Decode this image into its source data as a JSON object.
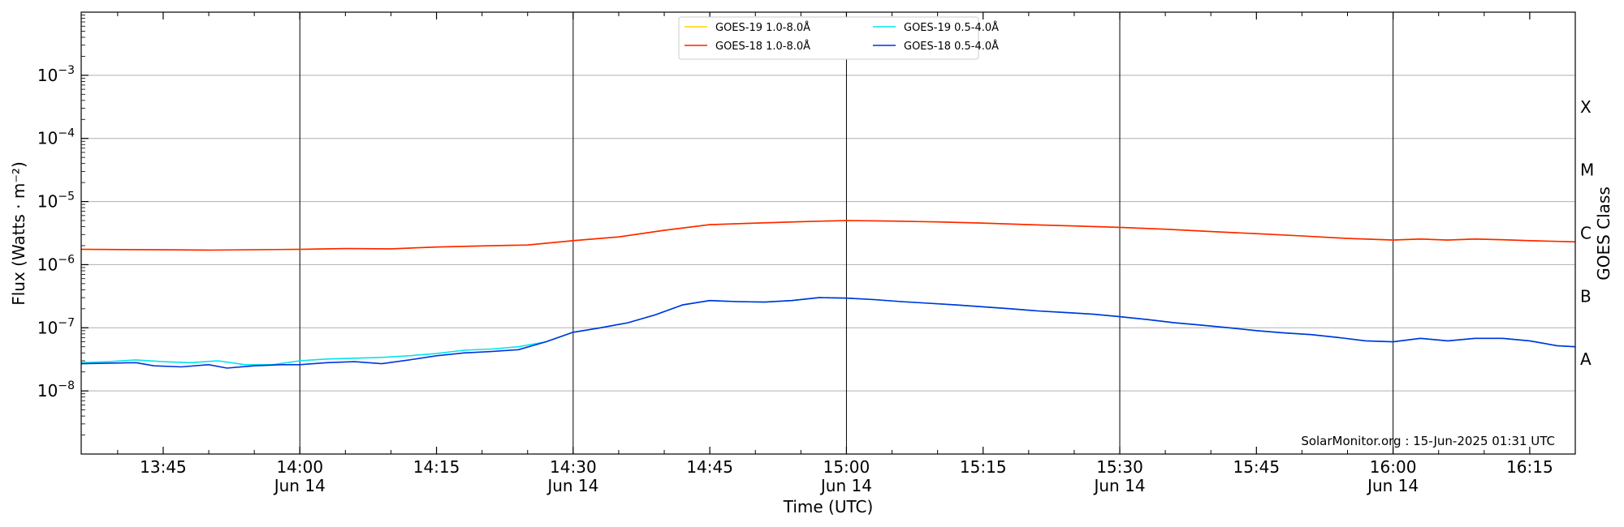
{
  "chart_data": {
    "type": "line",
    "xlabel": "Time (UTC)",
    "ylabel": "Flux (Watts · m⁻²)",
    "right_label": "GOES Class",
    "credit": "SolarMonitor.org : 15-Jun-2025 01:31 UTC",
    "x_range": [
      "13:36",
      "16:20"
    ],
    "ylim": [
      1e-09,
      0.01
    ],
    "y_scale": "log",
    "grid": "horizontal",
    "legend_position": "top-center",
    "x_ticks": [
      {
        "time": "13:45",
        "date": ""
      },
      {
        "time": "14:00",
        "date": "Jun 14"
      },
      {
        "time": "14:15",
        "date": ""
      },
      {
        "time": "14:30",
        "date": "Jun 14"
      },
      {
        "time": "14:45",
        "date": ""
      },
      {
        "time": "15:00",
        "date": "Jun 14"
      },
      {
        "time": "15:15",
        "date": ""
      },
      {
        "time": "15:30",
        "date": "Jun 14"
      },
      {
        "time": "15:45",
        "date": ""
      },
      {
        "time": "16:00",
        "date": "Jun 14"
      },
      {
        "time": "16:15",
        "date": ""
      }
    ],
    "y_ticks": [
      {
        "base": "10",
        "exp": "−8",
        "value": 1e-08
      },
      {
        "base": "10",
        "exp": "−7",
        "value": 1e-07
      },
      {
        "base": "10",
        "exp": "−6",
        "value": 1e-06
      },
      {
        "base": "10",
        "exp": "−5",
        "value": 1e-05
      },
      {
        "base": "10",
        "exp": "−4",
        "value": 0.0001
      },
      {
        "base": "10",
        "exp": "−3",
        "value": 0.001
      }
    ],
    "vertical_lines": [
      "14:00",
      "14:30",
      "15:00",
      "15:30",
      "16:00"
    ],
    "goes_classes": [
      {
        "label": "A",
        "value": 3.16e-08
      },
      {
        "label": "B",
        "value": 3.16e-07
      },
      {
        "label": "C",
        "value": 3.16e-06
      },
      {
        "label": "M",
        "value": 3.16e-05
      },
      {
        "label": "X",
        "value": 0.000316
      }
    ],
    "series": [
      {
        "name": "GOES-19 1.0-8.0Å",
        "color": "#ffd700",
        "points": [
          [
            "13:36",
            1.75e-06
          ],
          [
            "13:45",
            1.72e-06
          ],
          [
            "13:50",
            1.7e-06
          ],
          [
            "14:00",
            1.75e-06
          ],
          [
            "14:05",
            1.8e-06
          ],
          [
            "14:10",
            1.78e-06
          ],
          [
            "14:15",
            1.9e-06
          ],
          [
            "14:20",
            1.98e-06
          ],
          [
            "14:25",
            2.05e-06
          ],
          [
            "14:30",
            2.4e-06
          ],
          [
            "14:35",
            2.75e-06
          ],
          [
            "14:40",
            3.5e-06
          ],
          [
            "14:45",
            4.3e-06
          ],
          [
            "14:50",
            4.55e-06
          ],
          [
            "14:55",
            4.8e-06
          ],
          [
            "15:00",
            5e-06
          ],
          [
            "15:05",
            4.9e-06
          ],
          [
            "15:10",
            4.75e-06
          ],
          [
            "15:15",
            4.55e-06
          ],
          [
            "15:20",
            4.3e-06
          ],
          [
            "15:25",
            4.1e-06
          ],
          [
            "15:30",
            3.9e-06
          ],
          [
            "15:35",
            3.65e-06
          ],
          [
            "15:40",
            3.35e-06
          ],
          [
            "15:45",
            3.1e-06
          ],
          [
            "15:50",
            2.85e-06
          ],
          [
            "15:55",
            2.6e-06
          ],
          [
            "16:00",
            2.45e-06
          ],
          [
            "16:03",
            2.55e-06
          ],
          [
            "16:06",
            2.45e-06
          ],
          [
            "16:09",
            2.55e-06
          ],
          [
            "16:12",
            2.48e-06
          ],
          [
            "16:15",
            2.4e-06
          ],
          [
            "16:20",
            2.3e-06
          ]
        ]
      },
      {
        "name": "GOES-18 1.0-8.0Å",
        "color": "#ff2200",
        "points": [
          [
            "13:36",
            1.75e-06
          ],
          [
            "13:45",
            1.72e-06
          ],
          [
            "13:50",
            1.7e-06
          ],
          [
            "14:00",
            1.75e-06
          ],
          [
            "14:05",
            1.8e-06
          ],
          [
            "14:10",
            1.78e-06
          ],
          [
            "14:15",
            1.9e-06
          ],
          [
            "14:20",
            1.98e-06
          ],
          [
            "14:25",
            2.05e-06
          ],
          [
            "14:30",
            2.4e-06
          ],
          [
            "14:35",
            2.75e-06
          ],
          [
            "14:40",
            3.5e-06
          ],
          [
            "14:45",
            4.3e-06
          ],
          [
            "14:50",
            4.55e-06
          ],
          [
            "14:55",
            4.8e-06
          ],
          [
            "15:00",
            5e-06
          ],
          [
            "15:05",
            4.9e-06
          ],
          [
            "15:10",
            4.75e-06
          ],
          [
            "15:15",
            4.55e-06
          ],
          [
            "15:20",
            4.3e-06
          ],
          [
            "15:25",
            4.1e-06
          ],
          [
            "15:30",
            3.9e-06
          ],
          [
            "15:35",
            3.65e-06
          ],
          [
            "15:40",
            3.35e-06
          ],
          [
            "15:45",
            3.1e-06
          ],
          [
            "15:50",
            2.85e-06
          ],
          [
            "15:55",
            2.6e-06
          ],
          [
            "16:00",
            2.45e-06
          ],
          [
            "16:03",
            2.55e-06
          ],
          [
            "16:06",
            2.45e-06
          ],
          [
            "16:09",
            2.55e-06
          ],
          [
            "16:12",
            2.48e-06
          ],
          [
            "16:15",
            2.4e-06
          ],
          [
            "16:20",
            2.3e-06
          ]
        ]
      },
      {
        "name": "GOES-19 0.5-4.0Å",
        "color": "#00e5ee",
        "points": [
          [
            "13:36",
            2.8e-08
          ],
          [
            "13:39",
            2.9e-08
          ],
          [
            "13:42",
            3.1e-08
          ],
          [
            "13:45",
            2.9e-08
          ],
          [
            "13:48",
            2.8e-08
          ],
          [
            "13:51",
            3e-08
          ],
          [
            "13:54",
            2.6e-08
          ],
          [
            "13:57",
            2.6e-08
          ],
          [
            "14:00",
            3e-08
          ],
          [
            "14:03",
            3.2e-08
          ],
          [
            "14:06",
            3.3e-08
          ],
          [
            "14:09",
            3.4e-08
          ],
          [
            "14:12",
            3.6e-08
          ],
          [
            "14:15",
            3.9e-08
          ],
          [
            "14:18",
            4.4e-08
          ],
          [
            "14:21",
            4.6e-08
          ],
          [
            "14:24",
            5e-08
          ],
          [
            "14:27",
            6e-08
          ],
          [
            "14:30",
            8.5e-08
          ],
          [
            "14:33",
            1e-07
          ],
          [
            "14:36",
            1.2e-07
          ],
          [
            "14:39",
            1.6e-07
          ],
          [
            "14:42",
            2.3e-07
          ],
          [
            "14:45",
            2.7e-07
          ],
          [
            "14:48",
            2.6e-07
          ],
          [
            "14:51",
            2.55e-07
          ],
          [
            "14:54",
            2.7e-07
          ],
          [
            "14:57",
            3e-07
          ],
          [
            "15:00",
            2.95e-07
          ],
          [
            "15:03",
            2.8e-07
          ],
          [
            "15:06",
            2.6e-07
          ],
          [
            "15:09",
            2.45e-07
          ],
          [
            "15:12",
            2.3e-07
          ],
          [
            "15:15",
            2.15e-07
          ],
          [
            "15:18",
            2e-07
          ],
          [
            "15:21",
            1.85e-07
          ],
          [
            "15:24",
            1.75e-07
          ],
          [
            "15:27",
            1.65e-07
          ],
          [
            "15:30",
            1.5e-07
          ],
          [
            "15:33",
            1.35e-07
          ],
          [
            "15:36",
            1.2e-07
          ],
          [
            "15:39",
            1.1e-07
          ],
          [
            "15:42",
            1e-07
          ],
          [
            "15:45",
            9e-08
          ],
          [
            "15:48",
            8.3e-08
          ],
          [
            "15:51",
            7.8e-08
          ],
          [
            "15:54",
            7e-08
          ],
          [
            "15:57",
            6.2e-08
          ],
          [
            "16:00",
            6e-08
          ],
          [
            "16:03",
            6.8e-08
          ],
          [
            "16:06",
            6.2e-08
          ],
          [
            "16:09",
            6.8e-08
          ],
          [
            "16:12",
            6.8e-08
          ],
          [
            "16:15",
            6.2e-08
          ],
          [
            "16:18",
            5.2e-08
          ],
          [
            "16:20",
            5e-08
          ]
        ]
      },
      {
        "name": "GOES-18 0.5-4.0Å",
        "color": "#0033dd",
        "points": [
          [
            "13:36",
            2.7e-08
          ],
          [
            "13:39",
            2.75e-08
          ],
          [
            "13:42",
            2.8e-08
          ],
          [
            "13:44",
            2.5e-08
          ],
          [
            "13:47",
            2.4e-08
          ],
          [
            "13:50",
            2.6e-08
          ],
          [
            "13:52",
            2.3e-08
          ],
          [
            "13:55",
            2.5e-08
          ],
          [
            "13:58",
            2.6e-08
          ],
          [
            "14:00",
            2.6e-08
          ],
          [
            "14:03",
            2.8e-08
          ],
          [
            "14:06",
            2.9e-08
          ],
          [
            "14:09",
            2.7e-08
          ],
          [
            "14:12",
            3.1e-08
          ],
          [
            "14:15",
            3.6e-08
          ],
          [
            "14:18",
            4e-08
          ],
          [
            "14:21",
            4.2e-08
          ],
          [
            "14:24",
            4.5e-08
          ],
          [
            "14:27",
            6e-08
          ],
          [
            "14:30",
            8.5e-08
          ],
          [
            "14:33",
            1e-07
          ],
          [
            "14:36",
            1.2e-07
          ],
          [
            "14:39",
            1.6e-07
          ],
          [
            "14:42",
            2.3e-07
          ],
          [
            "14:45",
            2.7e-07
          ],
          [
            "14:48",
            2.6e-07
          ],
          [
            "14:51",
            2.55e-07
          ],
          [
            "14:54",
            2.7e-07
          ],
          [
            "14:57",
            3e-07
          ],
          [
            "15:00",
            2.95e-07
          ],
          [
            "15:03",
            2.8e-07
          ],
          [
            "15:06",
            2.6e-07
          ],
          [
            "15:09",
            2.45e-07
          ],
          [
            "15:12",
            2.3e-07
          ],
          [
            "15:15",
            2.15e-07
          ],
          [
            "15:18",
            2e-07
          ],
          [
            "15:21",
            1.85e-07
          ],
          [
            "15:24",
            1.75e-07
          ],
          [
            "15:27",
            1.65e-07
          ],
          [
            "15:30",
            1.5e-07
          ],
          [
            "15:33",
            1.35e-07
          ],
          [
            "15:36",
            1.2e-07
          ],
          [
            "15:39",
            1.1e-07
          ],
          [
            "15:42",
            1e-07
          ],
          [
            "15:45",
            9e-08
          ],
          [
            "15:48",
            8.3e-08
          ],
          [
            "15:51",
            7.8e-08
          ],
          [
            "15:54",
            7e-08
          ],
          [
            "15:57",
            6.2e-08
          ],
          [
            "16:00",
            6e-08
          ],
          [
            "16:03",
            6.8e-08
          ],
          [
            "16:06",
            6.2e-08
          ],
          [
            "16:09",
            6.8e-08
          ],
          [
            "16:12",
            6.8e-08
          ],
          [
            "16:15",
            6.2e-08
          ],
          [
            "16:18",
            5.2e-08
          ],
          [
            "16:20",
            5e-08
          ]
        ]
      }
    ]
  }
}
